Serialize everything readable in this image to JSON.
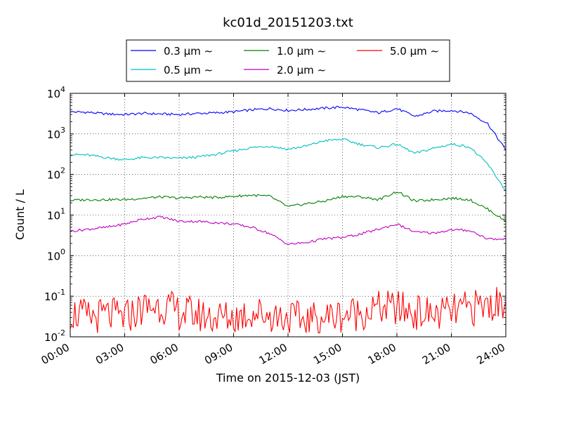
{
  "chart_data": {
    "type": "line",
    "title": "kc01d_20151203.txt",
    "xlabel": "Time on 2015-12-03 (JST)",
    "ylabel": "Count / L",
    "x_tick_labels": [
      "00:00",
      "03:00",
      "06:00",
      "09:00",
      "12:00",
      "15:00",
      "18:00",
      "21:00",
      "24:00"
    ],
    "y_scale": "log",
    "ylim": [
      0.01,
      10000
    ],
    "y_ticks": [
      {
        "base": "10",
        "exp": "-2"
      },
      {
        "base": "10",
        "exp": "-1"
      },
      {
        "base": "10",
        "exp": "0"
      },
      {
        "base": "10",
        "exp": "1"
      },
      {
        "base": "10",
        "exp": "2"
      },
      {
        "base": "10",
        "exp": "3"
      },
      {
        "base": "10",
        "exp": "4"
      }
    ],
    "grid": true,
    "legend_position": "top-center",
    "x_hours": [
      0,
      1,
      2,
      3,
      4,
      5,
      6,
      7,
      8,
      9,
      10,
      11,
      12,
      13,
      14,
      15,
      16,
      17,
      18,
      19,
      20,
      21,
      22,
      23,
      24
    ],
    "series": [
      {
        "name": "0.3 μm ∼",
        "color": "#0000ff",
        "values": [
          3500,
          3400,
          3100,
          3000,
          3200,
          3100,
          3000,
          3200,
          3300,
          3500,
          3900,
          4200,
          3800,
          4000,
          4300,
          4600,
          3900,
          3300,
          4200,
          2700,
          3600,
          3800,
          3300,
          1800,
          400
        ]
      },
      {
        "name": "0.5 μm ∼",
        "color": "#00bfbf",
        "values": [
          310,
          300,
          260,
          230,
          260,
          260,
          250,
          270,
          310,
          380,
          460,
          500,
          420,
          500,
          680,
          740,
          550,
          460,
          560,
          330,
          440,
          560,
          480,
          180,
          40
        ]
      },
      {
        "name": "1.0 μm ∼",
        "color": "#008000",
        "values": [
          23,
          24,
          24,
          24,
          26,
          28,
          26,
          28,
          27,
          29,
          31,
          29,
          16,
          19,
          22,
          29,
          28,
          24,
          38,
          22,
          24,
          26,
          24,
          14,
          7
        ]
      },
      {
        "name": "2.0 μm ∼",
        "color": "#bf00bf",
        "values": [
          4,
          4.5,
          5,
          6,
          8,
          9,
          7,
          7,
          6.5,
          6,
          5,
          3.5,
          1.9,
          2.1,
          2.6,
          2.8,
          3.4,
          4.5,
          6,
          3.8,
          3.6,
          4.3,
          4.2,
          2.6,
          2.5
        ]
      },
      {
        "name": "5.0 μm ∼",
        "color": "#ff0000",
        "values": [
          0.04,
          0.03,
          0.035,
          0.03,
          0.05,
          0.06,
          0.04,
          0.035,
          0.03,
          0.03,
          0.04,
          0.035,
          0.03,
          0.025,
          0.03,
          0.035,
          0.04,
          0.05,
          0.05,
          0.04,
          0.035,
          0.04,
          0.05,
          0.06,
          0.07
        ]
      }
    ]
  }
}
